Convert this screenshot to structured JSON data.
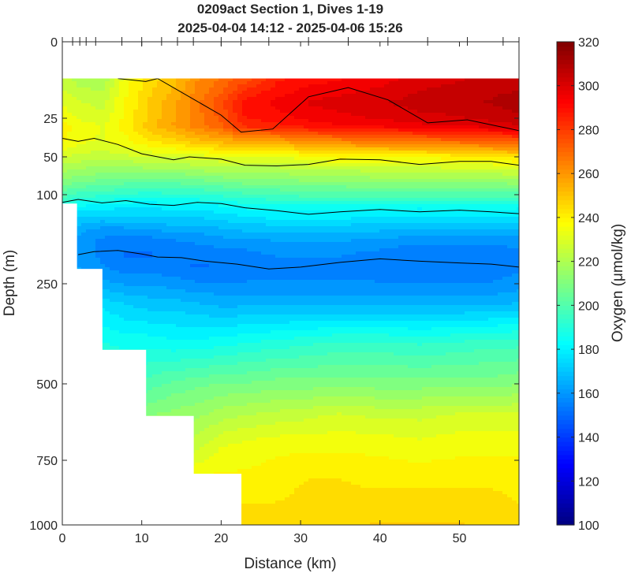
{
  "chart_data": {
    "type": "heatmap",
    "title": "0209act Section 1, Dives 1-19",
    "subtitle": "2025-04-04 14:12 - 2025-04-06 15:26",
    "xlabel": "Distance (km)",
    "ylabel": "Depth (m)",
    "xlim": [
      0,
      57.5
    ],
    "ylim": [
      1000,
      0
    ],
    "y_scale": "piecewise (stretched upper 250 m)",
    "x_ticks": [
      0,
      10,
      20,
      30,
      40,
      50
    ],
    "x_tick_labels": [
      "0",
      "10",
      "20",
      "30",
      "40",
      "50"
    ],
    "y_ticks": [
      0,
      25,
      50,
      100,
      250,
      500,
      750,
      1000
    ],
    "y_tick_labels": [
      "0",
      "25",
      "50",
      "100",
      "250",
      "500",
      "750",
      "1000"
    ],
    "colorbar": {
      "label": "Oxygen (μmol/kg)",
      "range": [
        100,
        320
      ],
      "ticks": [
        100,
        120,
        140,
        160,
        180,
        200,
        220,
        240,
        260,
        280,
        300,
        320
      ],
      "tick_labels": [
        "100",
        "120",
        "140",
        "160",
        "180",
        "200",
        "220",
        "240",
        "260",
        "280",
        "300",
        "320"
      ],
      "colormap": "jet"
    },
    "dive_distances_km": [
      0,
      1.3,
      2.2,
      3,
      4.2,
      7.5,
      10,
      12.5,
      14.5,
      16.5,
      20,
      22.5,
      26,
      31,
      36,
      41,
      46,
      51,
      55.5,
      57.5
    ],
    "grid_x_km": [
      0,
      2,
      5,
      8,
      11,
      14,
      17,
      20,
      23,
      27,
      31,
      35,
      40,
      45,
      50,
      54,
      57.5
    ],
    "grid_depth_m": [
      12,
      20,
      30,
      40,
      50,
      65,
      80,
      100,
      120,
      140,
      160,
      180,
      200,
      220,
      250,
      300,
      400,
      500,
      600,
      700,
      800,
      900,
      1000
    ],
    "oxygen_grid": [
      [
        225,
        220,
        218,
        235,
        245,
        250,
        262,
        268,
        275,
        286,
        290,
        292,
        295,
        300,
        302,
        305,
        305
      ],
      [
        232,
        228,
        226,
        238,
        248,
        256,
        266,
        276,
        290,
        294,
        298,
        300,
        302,
        305,
        306,
        308,
        310
      ],
      [
        240,
        236,
        232,
        240,
        250,
        258,
        265,
        272,
        284,
        286,
        290,
        292,
        294,
        296,
        298,
        300,
        302
      ],
      [
        238,
        234,
        232,
        236,
        242,
        246,
        250,
        254,
        256,
        258,
        262,
        264,
        266,
        268,
        270,
        272,
        274
      ],
      [
        228,
        226,
        224,
        226,
        228,
        228,
        230,
        232,
        232,
        232,
        236,
        240,
        238,
        238,
        240,
        242,
        244
      ],
      [
        220,
        218,
        216,
        216,
        218,
        218,
        220,
        222,
        222,
        222,
        224,
        224,
        226,
        226,
        228,
        228,
        230
      ],
      [
        212,
        210,
        208,
        206,
        206,
        206,
        208,
        210,
        212,
        212,
        214,
        214,
        216,
        216,
        216,
        216,
        218
      ],
      [
        200,
        196,
        194,
        192,
        190,
        192,
        192,
        194,
        196,
        198,
        200,
        200,
        200,
        200,
        200,
        200,
        200
      ],
      [
        186,
        182,
        180,
        178,
        178,
        180,
        180,
        182,
        184,
        186,
        186,
        186,
        186,
        184,
        186,
        186,
        184
      ],
      [
        176,
        172,
        170,
        172,
        172,
        172,
        172,
        174,
        176,
        178,
        178,
        178,
        176,
        176,
        176,
        176,
        176
      ],
      [
        168,
        164,
        160,
        160,
        162,
        164,
        164,
        166,
        168,
        168,
        168,
        168,
        168,
        166,
        166,
        166,
        166
      ],
      [
        164,
        160,
        156,
        154,
        154,
        156,
        158,
        160,
        160,
        162,
        162,
        162,
        160,
        158,
        158,
        158,
        160
      ],
      [
        164,
        160,
        156,
        152,
        152,
        154,
        154,
        155,
        156,
        158,
        158,
        158,
        156,
        154,
        154,
        154,
        156
      ],
      [
        166,
        162,
        158,
        154,
        154,
        154,
        152,
        153,
        154,
        156,
        156,
        156,
        154,
        154,
        154,
        154,
        156
      ],
      [
        172,
        168,
        164,
        162,
        162,
        160,
        158,
        158,
        158,
        158,
        158,
        158,
        158,
        158,
        158,
        158,
        160
      ],
      [
        184,
        180,
        176,
        172,
        170,
        170,
        168,
        166,
        166,
        166,
        166,
        166,
        166,
        166,
        166,
        166,
        168
      ],
      [
        192,
        190,
        188,
        186,
        186,
        184,
        184,
        186,
        188,
        190,
        192,
        194,
        194,
        192,
        194,
        196,
        196
      ],
      [
        200,
        198,
        196,
        196,
        200,
        204,
        206,
        208,
        208,
        210,
        210,
        210,
        210,
        210,
        210,
        210,
        212
      ],
      [
        210,
        208,
        208,
        208,
        212,
        214,
        216,
        220,
        222,
        224,
        226,
        228,
        226,
        226,
        228,
        228,
        228
      ],
      [
        218,
        218,
        218,
        220,
        222,
        222,
        226,
        232,
        234,
        236,
        236,
        236,
        236,
        234,
        236,
        236,
        236
      ],
      [
        224,
        224,
        226,
        228,
        230,
        232,
        236,
        238,
        238,
        240,
        242,
        242,
        240,
        240,
        240,
        240,
        240
      ],
      [
        230,
        232,
        234,
        236,
        238,
        240,
        242,
        242,
        242,
        242,
        244,
        244,
        244,
        244,
        244,
        244,
        242
      ],
      [
        234,
        236,
        238,
        240,
        242,
        244,
        244,
        244,
        246,
        246,
        246,
        246,
        248,
        248,
        248,
        246,
        246
      ]
    ],
    "contour_levels": [
      300,
      280,
      240,
      200,
      170
    ],
    "contours": [
      {
        "x": [
          7,
          10.5,
          12,
          20,
          22.5,
          26.5,
          31,
          36,
          41,
          46,
          51,
          57.5
        ],
        "depth": [
          12,
          13,
          12,
          24,
          34,
          32,
          18,
          15,
          19,
          28,
          26,
          33
        ]
      },
      {
        "x": [
          0,
          2,
          4,
          7,
          10,
          14,
          16,
          20,
          23,
          27,
          31,
          35,
          40,
          45,
          50,
          54,
          57.5
        ],
        "depth": [
          38,
          40,
          38,
          42,
          48,
          54,
          50,
          53,
          61,
          62,
          60,
          53,
          54,
          60,
          56,
          56,
          61
        ]
      },
      {
        "x": [
          0,
          2,
          5,
          8,
          11,
          14,
          17,
          20,
          23,
          27,
          31,
          35,
          40,
          45,
          50,
          54,
          57.5
        ],
        "depth": [
          113,
          108,
          114,
          110,
          116,
          118,
          113,
          115,
          122,
          127,
          133,
          129,
          125,
          129,
          126,
          129,
          132
        ]
      },
      {
        "x": [
          2,
          4,
          7,
          10,
          12,
          15,
          18,
          22,
          26,
          30,
          35,
          40,
          45,
          50,
          54,
          57.5
        ],
        "depth": [
          201,
          196,
          194,
          200,
          205,
          206,
          212,
          217,
          225,
          222,
          214,
          208,
          212,
          215,
          217,
          222
        ]
      }
    ],
    "data_coverage_max_depth": [
      {
        "from_km": 0,
        "to_km": 1.8,
        "max_depth_m": 115
      },
      {
        "from_km": 1.8,
        "to_km": 5,
        "max_depth_m": 225
      },
      {
        "from_km": 5,
        "to_km": 10.5,
        "max_depth_m": 415
      },
      {
        "from_km": 10.5,
        "to_km": 16.5,
        "max_depth_m": 605
      },
      {
        "from_km": 16.5,
        "to_km": 22.5,
        "max_depth_m": 802
      },
      {
        "from_km": 22.5,
        "to_km": 57.5,
        "max_depth_m": 1000
      }
    ],
    "surface_gap_depth_m": 12,
    "colors": {
      "background": "#ffffff",
      "axis": "#262626",
      "contour": "#000000"
    }
  }
}
